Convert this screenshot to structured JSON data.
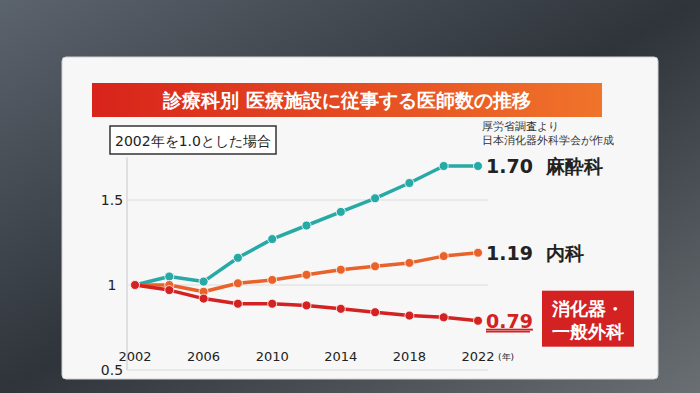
{
  "chart_data": {
    "type": "line",
    "title": "診療科別 医療施設に従事する医師数の推移",
    "subtitle": "2002年を1.0とした場合",
    "source": [
      "厚労省調査より",
      "日本消化器外科学会が作成"
    ],
    "x_label": "(年)",
    "x": [
      2002,
      2004,
      2006,
      2008,
      2010,
      2012,
      2014,
      2016,
      2018,
      2020,
      2022
    ],
    "xlim": [
      2002,
      2022
    ],
    "xticks": [
      2002,
      2006,
      2010,
      2014,
      2018,
      2022
    ],
    "ylim": [
      0.5,
      1.75
    ],
    "yticks": [
      0.5,
      1,
      1.5
    ],
    "grid": true,
    "marker": "circle",
    "series": [
      {
        "name": "麻酔科",
        "color": "#27a9a6",
        "values": [
          1.0,
          1.05,
          1.02,
          1.16,
          1.27,
          1.35,
          1.43,
          1.51,
          1.6,
          1.7,
          1.7
        ]
      },
      {
        "name": "内科",
        "color": "#e8622a",
        "values": [
          1.0,
          1.0,
          0.96,
          1.01,
          1.03,
          1.06,
          1.09,
          1.11,
          1.13,
          1.17,
          1.19
        ]
      },
      {
        "name": "消化器・一般外科",
        "color": "#d42121",
        "values": [
          1.0,
          0.97,
          0.92,
          0.89,
          0.89,
          0.88,
          0.86,
          0.84,
          0.82,
          0.81,
          0.79
        ]
      }
    ],
    "annotations": [
      "1.70",
      "1.19",
      "0.79"
    ]
  }
}
